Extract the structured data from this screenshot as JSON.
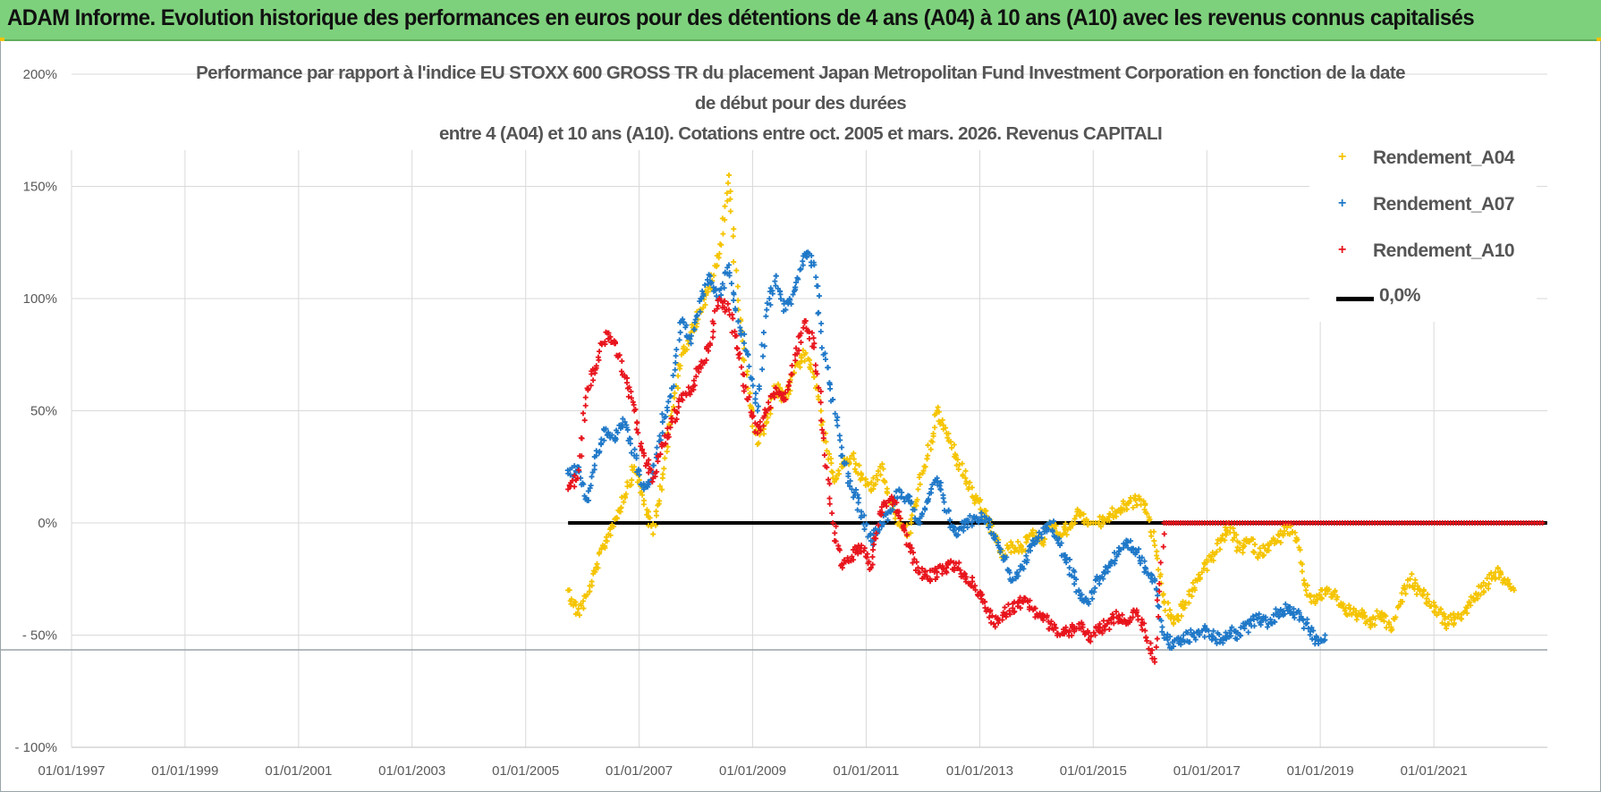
{
  "banner": {
    "title": "ADAM Informe. Evolution historique des performances en euros pour des détentions de 4 ans (A04) à 10 ans (A10) avec les revenus connus capitalisés"
  },
  "colors": {
    "banner_bg": "#7ed17c",
    "series_A04": "#f5c400",
    "series_A07": "#1f78c8",
    "series_A10": "#e8141c",
    "zero_line": "#000000",
    "grid": "#d9d9d9"
  },
  "chart_data": {
    "type": "scatter",
    "title_lines": [
      "Performance par rapport à l'indice EU STOXX 600 GROSS TR  du placement Japan Metropolitan Fund Investment Corporation en fonction de la date",
      "de début pour des durées",
      "entre 4 (A04) et 10 ans (A10).  Cotations entre oct. 2005 et mars. 2026. Revenus CAPITALI"
    ],
    "x_tick_labels": [
      "01/01/1997",
      "01/01/1999",
      "01/01/2001",
      "01/01/2003",
      "01/01/2005",
      "01/01/2007",
      "01/01/2009",
      "01/01/2011",
      "01/01/2013",
      "01/01/2015",
      "01/01/2017",
      "01/01/2019",
      "01/01/2021"
    ],
    "xlim": [
      "1997-01-01",
      "2023-01-01"
    ],
    "y_tick_labels": [
      "200%",
      "150%",
      "100%",
      "50%",
      "0%",
      "- 50%",
      "- 100%"
    ],
    "ylim": [
      -100,
      200
    ],
    "grid": true,
    "legend_position": "top-right",
    "series": [
      {
        "name": "Rendement_A04",
        "color_key": "series_A04",
        "marker": "+",
        "points": [
          [
            "2005-10-01",
            -30
          ],
          [
            "2005-12-01",
            -40
          ],
          [
            "2006-02-01",
            -32
          ],
          [
            "2006-04-01",
            -20
          ],
          [
            "2006-06-01",
            -8
          ],
          [
            "2006-08-01",
            2
          ],
          [
            "2006-10-01",
            12
          ],
          [
            "2006-12-01",
            25
          ],
          [
            "2007-02-01",
            10
          ],
          [
            "2007-04-01",
            -5
          ],
          [
            "2007-06-01",
            20
          ],
          [
            "2007-08-01",
            50
          ],
          [
            "2007-10-01",
            75
          ],
          [
            "2007-12-01",
            85
          ],
          [
            "2008-02-01",
            95
          ],
          [
            "2008-04-01",
            105
          ],
          [
            "2008-06-01",
            120
          ],
          [
            "2008-08-01",
            155
          ],
          [
            "2008-10-01",
            95
          ],
          [
            "2008-12-01",
            60
          ],
          [
            "2009-02-01",
            35
          ],
          [
            "2009-04-01",
            45
          ],
          [
            "2009-06-01",
            60
          ],
          [
            "2009-08-01",
            55
          ],
          [
            "2009-10-01",
            70
          ],
          [
            "2009-12-01",
            75
          ],
          [
            "2010-02-01",
            65
          ],
          [
            "2010-04-01",
            40
          ],
          [
            "2010-06-01",
            20
          ],
          [
            "2010-08-01",
            25
          ],
          [
            "2010-10-01",
            30
          ],
          [
            "2010-12-01",
            20
          ],
          [
            "2011-02-01",
            15
          ],
          [
            "2011-04-01",
            25
          ],
          [
            "2011-06-01",
            10
          ],
          [
            "2011-08-01",
            0
          ],
          [
            "2011-10-01",
            -5
          ],
          [
            "2011-12-01",
            15
          ],
          [
            "2012-02-01",
            30
          ],
          [
            "2012-04-01",
            50
          ],
          [
            "2012-06-01",
            40
          ],
          [
            "2012-08-01",
            30
          ],
          [
            "2012-10-01",
            20
          ],
          [
            "2012-12-01",
            10
          ],
          [
            "2013-02-01",
            5
          ],
          [
            "2013-04-01",
            -5
          ],
          [
            "2013-06-01",
            -15
          ],
          [
            "2013-08-01",
            -10
          ],
          [
            "2013-10-01",
            -12
          ],
          [
            "2013-12-01",
            -5
          ],
          [
            "2014-02-01",
            -8
          ],
          [
            "2014-04-01",
            0
          ],
          [
            "2014-06-01",
            -5
          ],
          [
            "2014-08-01",
            -2
          ],
          [
            "2014-10-01",
            5
          ],
          [
            "2014-12-01",
            0
          ],
          [
            "2015-02-01",
            0
          ],
          [
            "2015-04-01",
            2
          ],
          [
            "2015-06-01",
            5
          ],
          [
            "2015-08-01",
            8
          ],
          [
            "2015-10-01",
            10
          ],
          [
            "2015-12-01",
            8
          ],
          [
            "2016-02-01",
            -10
          ],
          [
            "2016-04-01",
            -35
          ],
          [
            "2016-06-01",
            -45
          ],
          [
            "2016-08-01",
            -38
          ],
          [
            "2016-10-01",
            -30
          ],
          [
            "2016-12-01",
            -22
          ],
          [
            "2017-02-01",
            -15
          ],
          [
            "2017-04-01",
            -8
          ],
          [
            "2017-06-01",
            -2
          ],
          [
            "2017-08-01",
            -12
          ],
          [
            "2017-10-01",
            -8
          ],
          [
            "2017-12-01",
            -14
          ],
          [
            "2018-02-01",
            -10
          ],
          [
            "2018-04-01",
            -8
          ],
          [
            "2018-06-01",
            -2
          ],
          [
            "2018-08-01",
            -8
          ],
          [
            "2018-10-01",
            -30
          ],
          [
            "2018-12-01",
            -35
          ],
          [
            "2019-02-01",
            -30
          ],
          [
            "2019-04-01",
            -32
          ],
          [
            "2019-06-01",
            -38
          ],
          [
            "2019-08-01",
            -40
          ],
          [
            "2019-10-01",
            -42
          ],
          [
            "2019-12-01",
            -45
          ],
          [
            "2020-02-01",
            -40
          ],
          [
            "2020-04-01",
            -48
          ],
          [
            "2020-06-01",
            -35
          ],
          [
            "2020-08-01",
            -25
          ],
          [
            "2020-10-01",
            -30
          ],
          [
            "2020-12-01",
            -35
          ],
          [
            "2021-02-01",
            -40
          ],
          [
            "2021-04-01",
            -45
          ],
          [
            "2021-06-01",
            -42
          ],
          [
            "2021-08-01",
            -38
          ],
          [
            "2021-10-01",
            -32
          ],
          [
            "2021-12-01",
            -28
          ],
          [
            "2022-02-01",
            -22
          ],
          [
            "2022-04-01",
            -25
          ],
          [
            "2022-06-01",
            -30
          ]
        ]
      },
      {
        "name": "Rendement_A07",
        "color_key": "series_A07",
        "marker": "+",
        "points": [
          [
            "2005-10-01",
            22
          ],
          [
            "2005-12-01",
            25
          ],
          [
            "2006-02-01",
            10
          ],
          [
            "2006-04-01",
            30
          ],
          [
            "2006-06-01",
            42
          ],
          [
            "2006-08-01",
            38
          ],
          [
            "2006-10-01",
            45
          ],
          [
            "2006-12-01",
            30
          ],
          [
            "2007-02-01",
            15
          ],
          [
            "2007-04-01",
            22
          ],
          [
            "2007-06-01",
            45
          ],
          [
            "2007-08-01",
            60
          ],
          [
            "2007-10-01",
            90
          ],
          [
            "2007-12-01",
            80
          ],
          [
            "2008-02-01",
            100
          ],
          [
            "2008-04-01",
            110
          ],
          [
            "2008-06-01",
            100
          ],
          [
            "2008-08-01",
            115
          ],
          [
            "2008-10-01",
            90
          ],
          [
            "2008-12-01",
            75
          ],
          [
            "2009-02-01",
            50
          ],
          [
            "2009-04-01",
            95
          ],
          [
            "2009-06-01",
            110
          ],
          [
            "2009-08-01",
            95
          ],
          [
            "2009-10-01",
            105
          ],
          [
            "2009-12-01",
            120
          ],
          [
            "2010-02-01",
            115
          ],
          [
            "2010-04-01",
            75
          ],
          [
            "2010-06-01",
            55
          ],
          [
            "2010-08-01",
            30
          ],
          [
            "2010-10-01",
            15
          ],
          [
            "2010-12-01",
            5
          ],
          [
            "2011-02-01",
            -8
          ],
          [
            "2011-04-01",
            0
          ],
          [
            "2011-06-01",
            5
          ],
          [
            "2011-08-01",
            15
          ],
          [
            "2011-10-01",
            10
          ],
          [
            "2011-12-01",
            0
          ],
          [
            "2012-02-01",
            10
          ],
          [
            "2012-04-01",
            20
          ],
          [
            "2012-06-01",
            5
          ],
          [
            "2012-08-01",
            -5
          ],
          [
            "2012-10-01",
            0
          ],
          [
            "2012-12-01",
            2
          ],
          [
            "2013-02-01",
            3
          ],
          [
            "2013-04-01",
            -5
          ],
          [
            "2013-06-01",
            -15
          ],
          [
            "2013-08-01",
            -25
          ],
          [
            "2013-10-01",
            -20
          ],
          [
            "2013-12-01",
            -10
          ],
          [
            "2014-02-01",
            -5
          ],
          [
            "2014-04-01",
            0
          ],
          [
            "2014-06-01",
            -10
          ],
          [
            "2014-08-01",
            -20
          ],
          [
            "2014-10-01",
            -30
          ],
          [
            "2014-12-01",
            -35
          ],
          [
            "2015-02-01",
            -25
          ],
          [
            "2015-04-01",
            -20
          ],
          [
            "2015-06-01",
            -15
          ],
          [
            "2015-08-01",
            -10
          ],
          [
            "2015-10-01",
            -12
          ],
          [
            "2015-12-01",
            -20
          ],
          [
            "2016-02-01",
            -25
          ],
          [
            "2016-04-01",
            -50
          ],
          [
            "2016-06-01",
            -55
          ],
          [
            "2016-08-01",
            -52
          ],
          [
            "2016-10-01",
            -50
          ],
          [
            "2016-12-01",
            -48
          ],
          [
            "2017-02-01",
            -50
          ],
          [
            "2017-04-01",
            -52
          ],
          [
            "2017-06-01",
            -48
          ],
          [
            "2017-08-01",
            -50
          ],
          [
            "2017-10-01",
            -45
          ],
          [
            "2017-12-01",
            -42
          ],
          [
            "2018-02-01",
            -45
          ],
          [
            "2018-04-01",
            -40
          ],
          [
            "2018-06-01",
            -38
          ],
          [
            "2018-08-01",
            -40
          ],
          [
            "2018-10-01",
            -45
          ],
          [
            "2018-12-01",
            -52
          ],
          [
            "2019-02-01",
            -50
          ]
        ]
      },
      {
        "name": "Rendement_A10",
        "color_key": "series_A10",
        "marker": "+",
        "points": [
          [
            "2005-10-01",
            15
          ],
          [
            "2005-12-01",
            20
          ],
          [
            "2006-02-01",
            60
          ],
          [
            "2006-04-01",
            70
          ],
          [
            "2006-06-01",
            85
          ],
          [
            "2006-08-01",
            80
          ],
          [
            "2006-10-01",
            65
          ],
          [
            "2006-12-01",
            50
          ],
          [
            "2007-02-01",
            30
          ],
          [
            "2007-04-01",
            20
          ],
          [
            "2007-06-01",
            35
          ],
          [
            "2007-08-01",
            45
          ],
          [
            "2007-10-01",
            55
          ],
          [
            "2007-12-01",
            60
          ],
          [
            "2008-02-01",
            70
          ],
          [
            "2008-04-01",
            80
          ],
          [
            "2008-06-01",
            100
          ],
          [
            "2008-08-01",
            95
          ],
          [
            "2008-10-01",
            75
          ],
          [
            "2008-12-01",
            55
          ],
          [
            "2009-02-01",
            40
          ],
          [
            "2009-04-01",
            50
          ],
          [
            "2009-06-01",
            60
          ],
          [
            "2009-08-01",
            55
          ],
          [
            "2009-10-01",
            75
          ],
          [
            "2009-12-01",
            90
          ],
          [
            "2010-02-01",
            80
          ],
          [
            "2010-04-01",
            40
          ],
          [
            "2010-06-01",
            0
          ],
          [
            "2010-08-01",
            -20
          ],
          [
            "2010-10-01",
            -15
          ],
          [
            "2010-12-01",
            -10
          ],
          [
            "2011-02-01",
            -20
          ],
          [
            "2011-04-01",
            5
          ],
          [
            "2011-06-01",
            10
          ],
          [
            "2011-08-01",
            5
          ],
          [
            "2011-10-01",
            -10
          ],
          [
            "2011-12-01",
            -20
          ],
          [
            "2012-02-01",
            -25
          ],
          [
            "2012-04-01",
            -22
          ],
          [
            "2012-06-01",
            -20
          ],
          [
            "2012-08-01",
            -18
          ],
          [
            "2012-10-01",
            -25
          ],
          [
            "2012-12-01",
            -28
          ],
          [
            "2013-02-01",
            -35
          ],
          [
            "2013-04-01",
            -45
          ],
          [
            "2013-06-01",
            -40
          ],
          [
            "2013-08-01",
            -38
          ],
          [
            "2013-10-01",
            -35
          ],
          [
            "2013-12-01",
            -38
          ],
          [
            "2014-02-01",
            -42
          ],
          [
            "2014-04-01",
            -45
          ],
          [
            "2014-06-01",
            -50
          ],
          [
            "2014-08-01",
            -48
          ],
          [
            "2014-10-01",
            -45
          ],
          [
            "2014-12-01",
            -52
          ],
          [
            "2015-02-01",
            -48
          ],
          [
            "2015-04-01",
            -45
          ],
          [
            "2015-06-01",
            -42
          ],
          [
            "2015-08-01",
            -45
          ],
          [
            "2015-10-01",
            -40
          ],
          [
            "2015-12-01",
            -48
          ],
          [
            "2016-02-01",
            -62
          ],
          [
            "2016-04-01",
            0
          ],
          [
            "2016-06-01",
            0
          ],
          [
            "2016-08-01",
            0
          ],
          [
            "2016-10-01",
            0
          ],
          [
            "2016-12-01",
            0
          ],
          [
            "2017-04-01",
            0
          ],
          [
            "2017-08-01",
            0
          ],
          [
            "2017-12-01",
            0
          ],
          [
            "2018-04-01",
            0
          ],
          [
            "2018-08-01",
            0
          ],
          [
            "2018-12-01",
            0
          ],
          [
            "2019-04-01",
            0
          ],
          [
            "2019-08-01",
            0
          ],
          [
            "2019-12-01",
            0
          ],
          [
            "2020-04-01",
            0
          ],
          [
            "2020-08-01",
            0
          ],
          [
            "2020-12-01",
            0
          ],
          [
            "2021-04-01",
            0
          ],
          [
            "2021-08-01",
            0
          ],
          [
            "2021-12-01",
            0
          ],
          [
            "2022-04-01",
            0
          ],
          [
            "2022-08-01",
            0
          ],
          [
            "2022-12-01",
            0
          ]
        ]
      },
      {
        "name": "0,0%",
        "color_key": "zero_line",
        "marker": "line",
        "points": [
          [
            "2005-10-01",
            0
          ],
          [
            "2022-12-31",
            0
          ]
        ]
      }
    ]
  }
}
